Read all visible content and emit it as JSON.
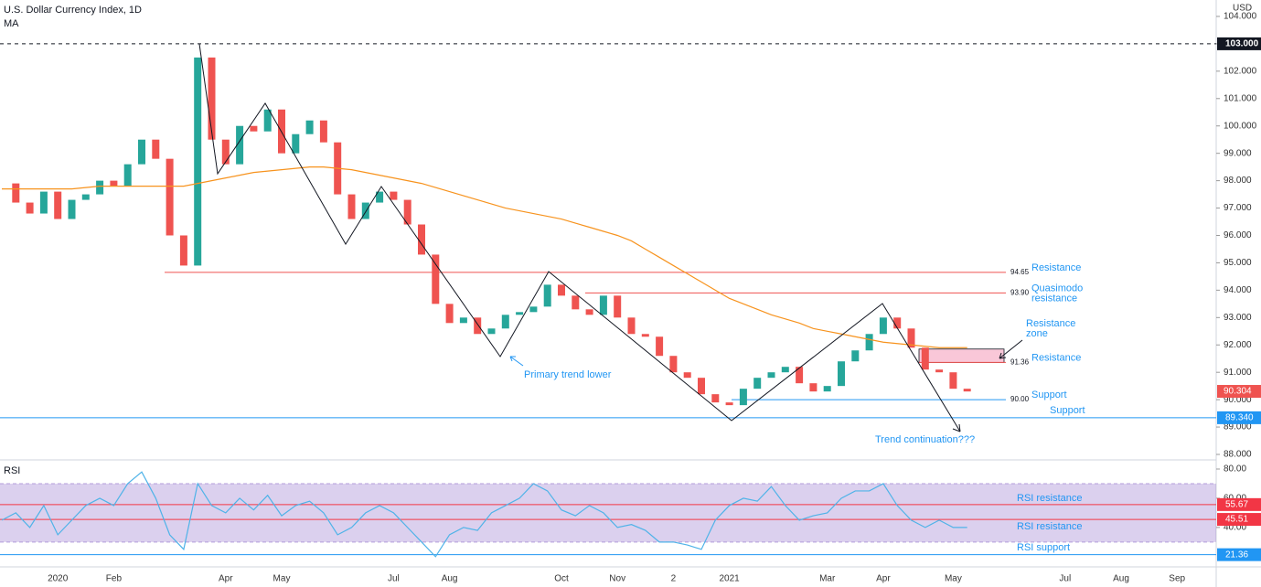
{
  "header": {
    "title": "U.S. Dollar Currency Index, 1D",
    "indicator": "MA",
    "rsi_title": "RSI",
    "currency": "USD"
  },
  "chart_data": {
    "type": "candlestick",
    "categories": [
      null,
      null,
      null,
      null,
      "2020",
      null,
      null,
      null,
      "Feb",
      null,
      null,
      null,
      null,
      null,
      null,
      null,
      "Apr",
      null,
      null,
      null,
      "May",
      null,
      null,
      null,
      null,
      null,
      null,
      null,
      "Jul",
      null,
      null,
      null,
      "Aug",
      null,
      null,
      null,
      null,
      null,
      null,
      null,
      "Oct",
      null,
      null,
      null,
      "Nov",
      null,
      null,
      null,
      "2",
      null,
      null,
      null,
      "2021",
      null,
      null,
      null,
      null,
      null,
      null,
      "Mar",
      null,
      null,
      null,
      "Apr",
      null,
      null,
      null,
      null,
      "May",
      null,
      null,
      null,
      null,
      null,
      null,
      null,
      "Jul",
      null,
      null,
      null,
      "Aug",
      null,
      null,
      null,
      "Sep",
      null,
      null
    ],
    "price": {
      "up_color": "#26a69a",
      "down_color": "#ef5350",
      "values": [
        97.9,
        97.2,
        96.8,
        97.6,
        96.6,
        97.3,
        97.5,
        98.0,
        97.8,
        98.6,
        99.5,
        98.8,
        96.0,
        94.9,
        102.5,
        99.5,
        98.6,
        100.0,
        99.8,
        100.6,
        99.0,
        99.7,
        100.2,
        99.4,
        97.5,
        96.6,
        97.2,
        97.6,
        97.3,
        96.4,
        95.3,
        93.5,
        92.8,
        93.0,
        92.4,
        92.6,
        93.1,
        93.2,
        93.4,
        94.2,
        93.8,
        93.3,
        93.1,
        93.8,
        93.0,
        92.4,
        92.3,
        91.6,
        91.0,
        90.8,
        90.2,
        89.9,
        89.8,
        90.4,
        90.8,
        91.0,
        91.2,
        90.6,
        90.3,
        90.5,
        91.4,
        91.8,
        92.4,
        93.0,
        92.6,
        91.9,
        91.1,
        91.0,
        90.4,
        90.3
      ]
    },
    "ma": {
      "color": "#f7931e",
      "values": [
        97.7,
        97.7,
        97.7,
        97.7,
        97.7,
        97.7,
        97.75,
        97.8,
        97.8,
        97.8,
        97.8,
        97.8,
        97.8,
        97.8,
        97.9,
        98.0,
        98.1,
        98.2,
        98.3,
        98.35,
        98.4,
        98.45,
        98.5,
        98.5,
        98.45,
        98.4,
        98.3,
        98.2,
        98.1,
        98.0,
        97.9,
        97.75,
        97.6,
        97.45,
        97.3,
        97.15,
        97.0,
        96.9,
        96.8,
        96.7,
        96.6,
        96.45,
        96.3,
        96.15,
        96.0,
        95.8,
        95.5,
        95.2,
        94.9,
        94.6,
        94.3,
        94.0,
        93.7,
        93.5,
        93.3,
        93.1,
        92.95,
        92.8,
        92.6,
        92.5,
        92.4,
        92.3,
        92.2,
        92.1,
        92.05,
        92.0,
        91.95,
        91.9,
        91.9,
        91.9
      ]
    },
    "ylim": [
      87.8,
      104.6
    ],
    "yticks": [
      {
        "value": 88,
        "label": "88.000"
      },
      {
        "value": 89,
        "label": "89.000"
      },
      {
        "value": 90,
        "label": "90.000"
      },
      {
        "value": 91,
        "label": "91.000"
      },
      {
        "value": 92,
        "label": "92.000"
      },
      {
        "value": 93,
        "label": "93.000"
      },
      {
        "value": 94,
        "label": "94.000"
      },
      {
        "value": 95,
        "label": "95.000"
      },
      {
        "value": 96,
        "label": "96.000"
      },
      {
        "value": 97,
        "label": "97.000"
      },
      {
        "value": 98,
        "label": "98.000"
      },
      {
        "value": 99,
        "label": "99.000"
      },
      {
        "value": 100,
        "label": "100.000"
      },
      {
        "value": 101,
        "label": "101.000"
      },
      {
        "value": 102,
        "label": "102.000"
      },
      {
        "value": 103,
        "label": "103.000"
      },
      {
        "value": 104,
        "label": "104.000"
      }
    ],
    "levels": [
      {
        "value": 94.65,
        "label": "94.65",
        "text": "Resistance",
        "color": "#ef5350"
      },
      {
        "value": 93.9,
        "label": "93.90",
        "text": "Quasimodo resistance",
        "color": "#ef5350"
      },
      {
        "value": 91.36,
        "label": "91.36",
        "text": "Resistance",
        "color": "#ef5350"
      },
      {
        "value": 90.0,
        "label": "90.00",
        "text": "Support",
        "color": "#2196f3"
      }
    ],
    "zone": {
      "low": 91.36,
      "high": 91.85,
      "text": "Resistance zone",
      "color": "rgba(233,30,99,0.25)"
    },
    "high_line": {
      "value": 103,
      "label": "103.000"
    },
    "support_line": {
      "value": 89.34,
      "label": "89.340",
      "text": "Support",
      "color": "#2196f3"
    },
    "last_price": {
      "value": 90.304,
      "color": "#ef5350"
    },
    "annotations": [
      "Primary trend lower",
      "Trend continuation???"
    ],
    "rsi": {
      "color": "#4fb3e8",
      "band": [
        30,
        70
      ],
      "ylim": [
        13,
        85
      ],
      "yticks": [
        {
          "value": 40,
          "label": "40.00"
        },
        {
          "value": 60,
          "label": "60.00"
        },
        {
          "value": 80,
          "label": "80.00"
        }
      ],
      "values": [
        45,
        50,
        40,
        55,
        35,
        45,
        55,
        60,
        55,
        70,
        78,
        60,
        35,
        25,
        70,
        55,
        50,
        60,
        52,
        62,
        48,
        55,
        58,
        50,
        35,
        40,
        50,
        55,
        50,
        40,
        30,
        20,
        35,
        40,
        38,
        50,
        55,
        60,
        70,
        65,
        52,
        48,
        55,
        50,
        40,
        42,
        38,
        30,
        30,
        28,
        25,
        45,
        55,
        60,
        58,
        68,
        55,
        45,
        48,
        50,
        60,
        65,
        65,
        70,
        55,
        45,
        40,
        45,
        40,
        40
      ],
      "levels": [
        {
          "value": 55.67,
          "text": "RSI resistance",
          "color": "#f23645"
        },
        {
          "value": 45.51,
          "text": "RSI resistance",
          "color": "#f23645"
        },
        {
          "value": 21.36,
          "text": "RSI support",
          "color": "#2196f3"
        }
      ]
    }
  }
}
